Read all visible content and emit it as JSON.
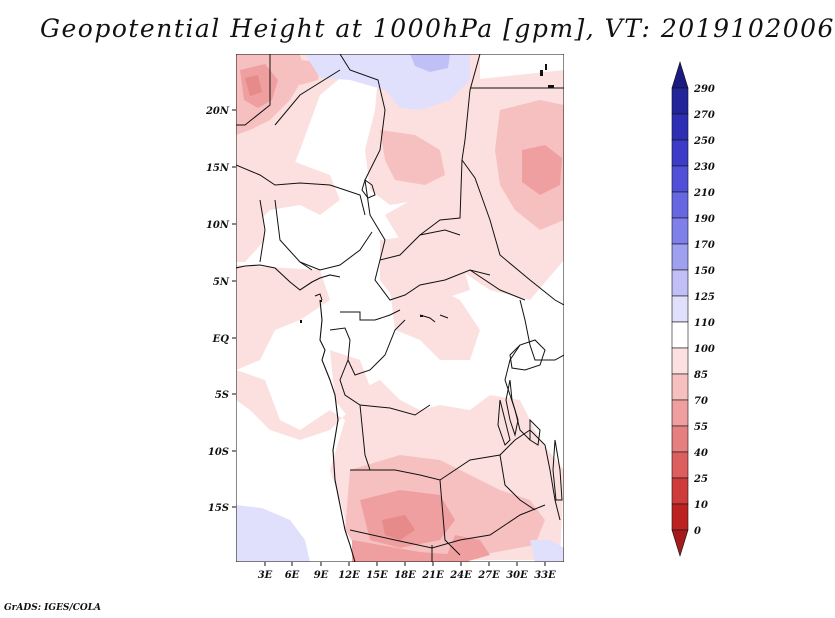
{
  "title": "Geopotential Height at 1000hPa [gpm], VT: 2019102006",
  "credit": "GrADS: IGES/COLA",
  "map": {
    "lat_labels": [
      "20N",
      "15N",
      "10N",
      "5N",
      "EQ",
      "5S",
      "10S",
      "15S"
    ],
    "lon_labels": [
      "3E",
      "6E",
      "9E",
      "12E",
      "15E",
      "18E",
      "21E",
      "24E",
      "27E",
      "30E",
      "33E"
    ]
  },
  "colorbar": {
    "levels": [
      "290",
      "270",
      "250",
      "230",
      "210",
      "190",
      "170",
      "150",
      "125",
      "110",
      "100",
      "85",
      "70",
      "55",
      "40",
      "25",
      "10",
      "0"
    ],
    "colors": [
      "#1a1a80",
      "#23239a",
      "#2e2eb4",
      "#3c3cc8",
      "#5050d8",
      "#6767e2",
      "#8080ea",
      "#a0a0f0",
      "#c0c0f6",
      "#e0e0fc",
      "#ffffff",
      "#fce0e0",
      "#f6c0c0",
      "#ef9f9f",
      "#e67f7f",
      "#dd5e5e",
      "#cf3b3b",
      "#bd2222",
      "#a51b1b"
    ]
  }
}
